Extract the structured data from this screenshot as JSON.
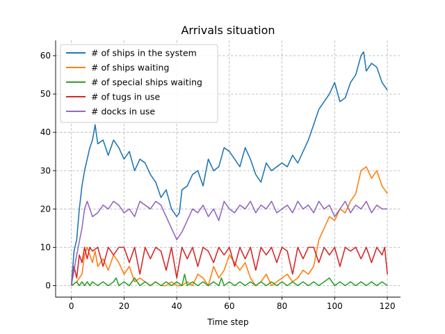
{
  "chart_data": {
    "type": "line",
    "title": "Arrivals situation",
    "xlabel": "Time step",
    "ylabel": "",
    "xlim": [
      -6,
      125
    ],
    "ylim": [
      -3,
      64
    ],
    "xticks": [
      0,
      20,
      40,
      60,
      80,
      100,
      120
    ],
    "yticks": [
      0,
      10,
      20,
      30,
      40,
      50,
      60
    ],
    "grid": true,
    "legend_position": "top-left",
    "series": [
      {
        "name": "# of ships in the system",
        "color": "#1f77b4",
        "x": [
          0,
          1,
          2,
          3,
          4,
          5,
          6,
          7,
          8,
          9,
          10,
          12,
          14,
          16,
          18,
          20,
          22,
          24,
          26,
          28,
          30,
          32,
          34,
          36,
          38,
          40,
          41,
          42,
          44,
          46,
          48,
          50,
          52,
          54,
          56,
          58,
          60,
          62,
          64,
          66,
          68,
          70,
          72,
          74,
          76,
          78,
          80,
          82,
          84,
          86,
          88,
          90,
          92,
          94,
          96,
          98,
          100,
          102,
          104,
          106,
          108,
          110,
          111,
          112,
          114,
          116,
          118,
          120
        ],
        "y": [
          0,
          9,
          12,
          20,
          26,
          30,
          33,
          36,
          38,
          42,
          37,
          38,
          34,
          38,
          36,
          33,
          35,
          30,
          33,
          32,
          29,
          27,
          23,
          25,
          20,
          18,
          19,
          25,
          26,
          29,
          30,
          26,
          33,
          30,
          31,
          36,
          35,
          33,
          31,
          36,
          33,
          29,
          27,
          32,
          30,
          31,
          32,
          31,
          34,
          32,
          35,
          38,
          42,
          46,
          48,
          50,
          53,
          48,
          49,
          53,
          55,
          60,
          61,
          56,
          58,
          57,
          53,
          51
        ]
      },
      {
        "name": "# of ships waiting",
        "color": "#ff7f0e",
        "x": [
          0,
          2,
          4,
          5,
          6,
          8,
          9,
          10,
          12,
          14,
          16,
          18,
          20,
          22,
          24,
          26,
          28,
          30,
          32,
          34,
          36,
          38,
          40,
          42,
          44,
          46,
          48,
          50,
          52,
          54,
          56,
          58,
          60,
          62,
          64,
          66,
          68,
          70,
          72,
          74,
          76,
          78,
          80,
          82,
          84,
          86,
          88,
          90,
          92,
          94,
          96,
          98,
          100,
          102,
          104,
          106,
          108,
          110,
          112,
          114,
          116,
          118,
          120
        ],
        "y": [
          0,
          1,
          3,
          8,
          10,
          6,
          9,
          5,
          7,
          4,
          8,
          6,
          3,
          5,
          1,
          2,
          1,
          0,
          1,
          0,
          0,
          1,
          0,
          0,
          1,
          0,
          3,
          2,
          0,
          5,
          2,
          4,
          8,
          6,
          4,
          6,
          2,
          0,
          1,
          3,
          0,
          1,
          2,
          3,
          1,
          2,
          4,
          3,
          5,
          12,
          15,
          18,
          17,
          20,
          19,
          22,
          24,
          30,
          31,
          28,
          30,
          26,
          24
        ]
      },
      {
        "name": "# of special ships waiting",
        "color": "#2ca02c",
        "x": [
          0,
          2,
          3,
          4,
          5,
          6,
          7,
          8,
          10,
          12,
          14,
          16,
          17,
          18,
          20,
          22,
          24,
          26,
          28,
          30,
          32,
          34,
          36,
          38,
          40,
          42,
          43,
          44,
          46,
          48,
          50,
          52,
          54,
          56,
          57,
          58,
          60,
          62,
          64,
          66,
          68,
          70,
          72,
          74,
          76,
          78,
          80,
          82,
          84,
          86,
          88,
          90,
          92,
          94,
          96,
          98,
          100,
          102,
          104,
          106,
          108,
          110,
          112,
          114,
          116,
          118,
          120
        ],
        "y": [
          0,
          1,
          0,
          1,
          0,
          1,
          0,
          1,
          0,
          1,
          0,
          1,
          2,
          0,
          1,
          0,
          2,
          0,
          1,
          0,
          1,
          0,
          1,
          0,
          1,
          0,
          3,
          0,
          1,
          0,
          1,
          0,
          1,
          0,
          2,
          0,
          1,
          0,
          1,
          0,
          1,
          0,
          1,
          0,
          1,
          0,
          1,
          0,
          1,
          0,
          1,
          0,
          1,
          0,
          1,
          2,
          0,
          1,
          0,
          1,
          0,
          1,
          0,
          1,
          0,
          1,
          0
        ]
      },
      {
        "name": "# of tugs in use",
        "color": "#d62728",
        "x": [
          0,
          1,
          2,
          3,
          4,
          5,
          6,
          7,
          8,
          10,
          12,
          14,
          16,
          18,
          20,
          22,
          24,
          26,
          28,
          30,
          32,
          34,
          36,
          38,
          40,
          42,
          44,
          46,
          48,
          50,
          52,
          54,
          56,
          58,
          60,
          62,
          64,
          66,
          68,
          70,
          72,
          74,
          76,
          78,
          80,
          82,
          84,
          86,
          88,
          90,
          92,
          94,
          96,
          98,
          100,
          102,
          104,
          106,
          108,
          110,
          112,
          114,
          116,
          118,
          119,
          120
        ],
        "y": [
          0,
          5,
          2,
          8,
          6,
          10,
          7,
          10,
          9,
          10,
          5,
          10,
          8,
          10,
          10,
          6,
          10,
          3,
          10,
          7,
          10,
          9,
          4,
          10,
          2,
          10,
          7,
          10,
          5,
          10,
          9,
          6,
          10,
          8,
          10,
          5,
          10,
          7,
          10,
          4,
          10,
          8,
          10,
          6,
          10,
          9,
          3,
          10,
          7,
          10,
          10,
          6,
          10,
          8,
          10,
          5,
          10,
          9,
          10,
          7,
          10,
          6,
          10,
          8,
          10,
          3
        ]
      },
      {
        "name": "# docks in use",
        "color": "#9467bd",
        "x": [
          0,
          2,
          4,
          5,
          6,
          7,
          8,
          10,
          12,
          14,
          16,
          18,
          20,
          22,
          24,
          26,
          28,
          30,
          32,
          34,
          36,
          38,
          40,
          42,
          44,
          46,
          48,
          50,
          52,
          54,
          56,
          58,
          60,
          62,
          64,
          66,
          68,
          70,
          72,
          74,
          76,
          78,
          80,
          82,
          84,
          86,
          88,
          90,
          92,
          94,
          96,
          98,
          100,
          102,
          104,
          106,
          108,
          110,
          112,
          114,
          116,
          118,
          120
        ],
        "y": [
          0,
          8,
          15,
          20,
          22,
          20,
          18,
          19,
          21,
          20,
          22,
          21,
          19,
          20,
          18,
          22,
          21,
          20,
          22,
          21,
          18,
          15,
          12,
          14,
          17,
          20,
          19,
          21,
          18,
          20,
          17,
          22,
          20,
          19,
          21,
          20,
          22,
          19,
          21,
          20,
          22,
          19,
          20,
          21,
          19,
          22,
          20,
          21,
          19,
          22,
          20,
          21,
          18,
          20,
          22,
          19,
          21,
          20,
          22,
          19,
          21,
          20,
          20
        ]
      }
    ]
  }
}
